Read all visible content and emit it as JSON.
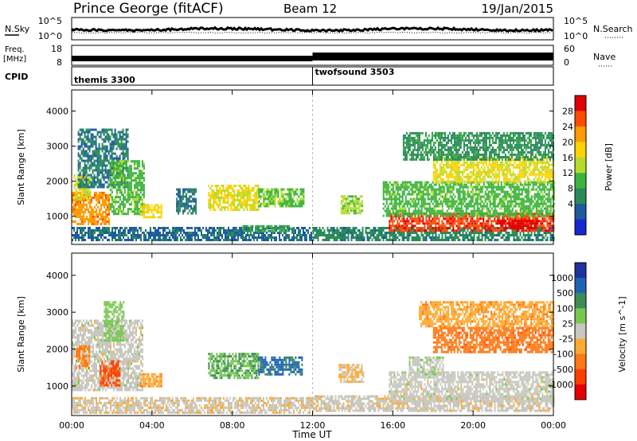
{
  "header": {
    "station": "Prince George (fitACF)",
    "beam": "Beam 12",
    "date": "19/Jan/2015"
  },
  "nsky_panel": {
    "label": "N.Sky",
    "right_label": "N.Search",
    "left_ticks": [
      "10^5",
      "10^0"
    ],
    "right_ticks": [
      "10^5",
      "10^0"
    ]
  },
  "freq_panel": {
    "label_line1": "Freq.",
    "label_line2": "[MHz]",
    "right_label": "Nave",
    "left_ticks": [
      "18",
      "8"
    ],
    "right_ticks": [
      "60",
      "0"
    ]
  },
  "cpid_panel": {
    "label": "CPID",
    "modes": [
      {
        "name": "themis 3300",
        "start": 0
      },
      {
        "name": "twofsound 3503",
        "start": 12
      }
    ]
  },
  "axes": {
    "xlabel": "Time UT",
    "x_ticks": [
      "00:00",
      "04:00",
      "08:00",
      "12:00",
      "16:00",
      "20:00",
      "00:00"
    ],
    "ylabel": "Slant Range [km]",
    "y_ticks": [
      "1000",
      "2000",
      "3000",
      "4000"
    ]
  },
  "colors": {
    "marker_line": "#bbbbbb",
    "ground_scatter": "#c8c8c0"
  },
  "chart_data": [
    {
      "type": "heatmap",
      "title": "",
      "xlabel": "Time UT",
      "ylabel": "Slant Range [km]",
      "xlim": [
        0,
        24
      ],
      "ylim": [
        200,
        4600
      ],
      "colorbar": {
        "label": "Power [dB]",
        "tick_labels": [
          "28",
          "24",
          "20",
          "16",
          "12",
          "8",
          "4"
        ],
        "tick_values": [
          28,
          24,
          20,
          16,
          12,
          8,
          4
        ],
        "colors": [
          "#e00000",
          "#ff4a00",
          "#ff9a00",
          "#ffd200",
          "#b4dc28",
          "#3cb43c",
          "#2a8a5a",
          "#1e5aa0",
          "#1428d2"
        ],
        "range": [
          0,
          30
        ]
      },
      "regions": [
        {
          "t0": 0.0,
          "t1": 1.9,
          "r0": 800,
          "r1": 1700,
          "value": 22
        },
        {
          "t0": 0.1,
          "t1": 0.9,
          "r0": 1500,
          "r1": 2200,
          "value": 16
        },
        {
          "t0": 0.3,
          "t1": 2.8,
          "r0": 1800,
          "r1": 3500,
          "value": 7
        },
        {
          "t0": 1.9,
          "t1": 3.6,
          "r0": 1100,
          "r1": 2600,
          "value": 12
        },
        {
          "t0": 3.4,
          "t1": 4.5,
          "r0": 950,
          "r1": 1350,
          "value": 18
        },
        {
          "t0": 5.2,
          "t1": 6.2,
          "r0": 1100,
          "r1": 1800,
          "value": 7
        },
        {
          "t0": 6.8,
          "t1": 9.3,
          "r0": 1200,
          "r1": 1900,
          "value": 17
        },
        {
          "t0": 9.3,
          "t1": 11.6,
          "r0": 1300,
          "r1": 1800,
          "value": 13
        },
        {
          "t0": 0.0,
          "t1": 12.0,
          "r0": 300,
          "r1": 700,
          "value": 6
        },
        {
          "t0": 8.5,
          "t1": 11.0,
          "r0": 550,
          "r1": 750,
          "value": 10
        },
        {
          "t0": 13.4,
          "t1": 14.5,
          "r0": 1100,
          "r1": 1600,
          "value": 14
        },
        {
          "t0": 12.0,
          "t1": 24.0,
          "r0": 300,
          "r1": 700,
          "value": 8
        },
        {
          "t0": 15.8,
          "t1": 24.0,
          "r0": 600,
          "r1": 1100,
          "value": 26
        },
        {
          "t0": 15.5,
          "t1": 24.0,
          "r0": 1000,
          "r1": 2000,
          "value": 12
        },
        {
          "t0": 18.0,
          "t1": 24.0,
          "r0": 2000,
          "r1": 2700,
          "value": 17
        },
        {
          "t0": 16.5,
          "t1": 24.0,
          "r0": 2600,
          "r1": 3400,
          "value": 9
        },
        {
          "t0": 21.2,
          "t1": 23.2,
          "r0": 650,
          "r1": 900,
          "value": 29
        }
      ]
    },
    {
      "type": "heatmap",
      "title": "",
      "xlabel": "Time UT",
      "ylabel": "Slant Range [km]",
      "xlim": [
        0,
        24
      ],
      "ylim": [
        200,
        4600
      ],
      "colorbar": {
        "label": "Velocity [m s^-1]",
        "tick_labels": [
          "1000",
          "500",
          "100",
          "25",
          "-25",
          "-100",
          "-500",
          "-1000"
        ],
        "tick_values": [
          1000,
          500,
          100,
          25,
          -25,
          -100,
          -500,
          -1000
        ],
        "colors": [
          "#1e32a0",
          "#1e64b4",
          "#3c8c5a",
          "#78c850",
          "#c8c8c0",
          "#ffaa32",
          "#ff7814",
          "#ff3c00",
          "#e60000"
        ],
        "range": [
          -1000,
          1000
        ]
      },
      "regions": [
        {
          "t0": 0.0,
          "t1": 3.5,
          "r0": 900,
          "r1": 2800,
          "value": 0
        },
        {
          "t0": 1.4,
          "t1": 2.4,
          "r0": 1000,
          "r1": 1700,
          "value": -600
        },
        {
          "t0": 0.2,
          "t1": 0.9,
          "r0": 1500,
          "r1": 2100,
          "value": -400
        },
        {
          "t0": 1.6,
          "t1": 2.6,
          "r0": 2200,
          "r1": 3300,
          "value": 200
        },
        {
          "t0": 3.4,
          "t1": 4.5,
          "r0": 1000,
          "r1": 1350,
          "value": -250
        },
        {
          "t0": 6.8,
          "t1": 9.3,
          "r0": 1200,
          "r1": 1900,
          "value": 300
        },
        {
          "t0": 9.3,
          "t1": 11.5,
          "r0": 1300,
          "r1": 1800,
          "value": 600
        },
        {
          "t0": 0.0,
          "t1": 12.0,
          "r0": 300,
          "r1": 700,
          "value": -60
        },
        {
          "t0": 13.3,
          "t1": 14.5,
          "r0": 1100,
          "r1": 1600,
          "value": -150
        },
        {
          "t0": 12.0,
          "t1": 24.0,
          "r0": 300,
          "r1": 750,
          "value": -30
        },
        {
          "t0": 15.8,
          "t1": 24.0,
          "r0": 600,
          "r1": 1400,
          "value": 0
        },
        {
          "t0": 16.8,
          "t1": 18.5,
          "r0": 1300,
          "r1": 1800,
          "value": 60
        },
        {
          "t0": 18.0,
          "t1": 24.0,
          "r0": 1900,
          "r1": 2600,
          "value": -450
        },
        {
          "t0": 17.3,
          "t1": 24.0,
          "r0": 2600,
          "r1": 3300,
          "value": -250
        }
      ]
    }
  ]
}
